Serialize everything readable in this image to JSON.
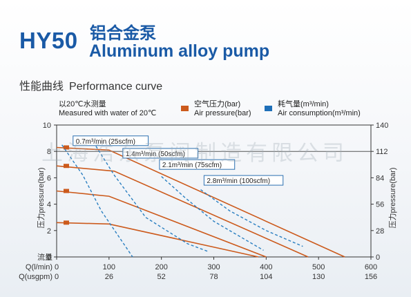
{
  "header": {
    "model": "HY50",
    "title_cn": "铝合金泵",
    "title_en": "Aluminum alloy pump",
    "subtitle_cn": "性能曲线",
    "subtitle_en": "Performance curve"
  },
  "note": {
    "cn": "以20℃水测量",
    "en": "Measured with water of 20℃"
  },
  "legend": [
    {
      "cn": "空气压力(bar)",
      "en": "Air pressure(bar)",
      "color": "#cc5a1c"
    },
    {
      "cn": "耗气量(m³/min)",
      "en": "Air consumption(m³/min)",
      "color": "#1e6fb8"
    }
  ],
  "watermark": "上海浩东泵阀制造有限公司",
  "colors": {
    "brand": "#1a5aa6",
    "pressure": "#cc5a1c",
    "consumption": "#2a7fc1",
    "grid": "#333333"
  },
  "chart_data": {
    "type": "line",
    "title": "Performance curve",
    "xlabel": "Q(l/min)",
    "xlabel2": "Q(usgpm)",
    "ylabel": "压力pressure(bar)",
    "ylabel_right": "压力pressure(bar)",
    "flow_row_label": "流量",
    "xlim": [
      0,
      600
    ],
    "ylim": [
      0,
      10
    ],
    "ylim_right": [
      0,
      140
    ],
    "x_ticks": [
      0,
      100,
      200,
      300,
      400,
      500,
      600
    ],
    "x2_ticks": [
      "0",
      "26",
      "52",
      "78",
      "104",
      "130",
      "156"
    ],
    "y_ticks": [
      0,
      2,
      4,
      6,
      8,
      10
    ],
    "y_right_ticks": [
      0,
      28,
      56,
      84,
      112,
      140
    ],
    "grid": false,
    "pressure_series": [
      {
        "name": "8.3 bar",
        "points": [
          [
            0,
            8.3
          ],
          [
            100,
            8.1
          ],
          [
            550,
            0
          ]
        ]
      },
      {
        "name": "6.9 bar",
        "points": [
          [
            0,
            6.9
          ],
          [
            110,
            6.5
          ],
          [
            480,
            0
          ]
        ]
      },
      {
        "name": "5 bar",
        "points": [
          [
            0,
            5.0
          ],
          [
            100,
            4.6
          ],
          [
            400,
            0
          ]
        ]
      },
      {
        "name": "2.6 bar",
        "points": [
          [
            0,
            2.6
          ],
          [
            100,
            2.5
          ],
          [
            385,
            0
          ]
        ]
      }
    ],
    "consumption_series": [
      {
        "name": "0.7m³/min (25scfm)",
        "points": [
          [
            10,
            8.5
          ],
          [
            50,
            6.2
          ],
          [
            85,
            3.5
          ],
          [
            145,
            0
          ]
        ]
      },
      {
        "name": "1.4m³/min (50scfm)",
        "points": [
          [
            75,
            8.4
          ],
          [
            110,
            6.2
          ],
          [
            170,
            3.0
          ],
          [
            250,
            1.0
          ],
          [
            290,
            0.4
          ]
        ]
      },
      {
        "name": "2.1m³/min (75scfm)",
        "points": [
          [
            200,
            6.1
          ],
          [
            245,
            4.5
          ],
          [
            300,
            2.7
          ],
          [
            395,
            0.5
          ]
        ]
      },
      {
        "name": "2.8m³/min (100scfm)",
        "points": [
          [
            275,
            5.1
          ],
          [
            330,
            3.5
          ],
          [
            400,
            2.0
          ],
          [
            470,
            0.8
          ]
        ]
      }
    ],
    "annotations": [
      {
        "text": "0.7m³/min (25scfm)",
        "x": 5,
        "y": 8.65
      },
      {
        "text": "1.4m³/min (50scfm)",
        "x": 100,
        "y": 7.7
      },
      {
        "text": "2.1m³/min (75scfm)",
        "x": 170,
        "y": 6.85
      },
      {
        "text": "2.8m³/min (100scfm)",
        "x": 255,
        "y": 5.65
      }
    ]
  }
}
